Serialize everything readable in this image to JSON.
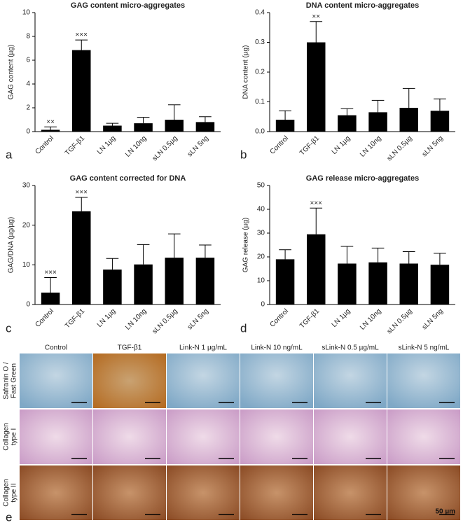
{
  "chart_data": [
    {
      "type": "bar",
      "panel": "a",
      "title": "GAG content micro-aggregates",
      "y_label": "GAG content (µg)",
      "categories": [
        "Control",
        "TGF-β1",
        "LN 1µg",
        "LN 10ng",
        "sLN 0.5µg",
        "sLN 5ng"
      ],
      "values": [
        0.15,
        6.85,
        0.5,
        0.7,
        1.0,
        0.8
      ],
      "errors": [
        0.25,
        0.85,
        0.2,
        0.5,
        1.25,
        0.45
      ],
      "significance": [
        "××",
        "×××",
        null,
        null,
        null,
        null
      ],
      "color": "#000000",
      "ylim": [
        0,
        10
      ],
      "yticks": [
        0,
        2,
        4,
        6,
        8,
        10
      ]
    },
    {
      "type": "bar",
      "panel": "b",
      "title": "DNA content micro-aggregates",
      "y_label": "DNA content (µg)",
      "categories": [
        "Control",
        "TGF-β1",
        "LN 1µg",
        "LN 10ng",
        "sLN 0.5µg",
        "sLN 5ng"
      ],
      "values": [
        0.04,
        0.3,
        0.055,
        0.065,
        0.08,
        0.07
      ],
      "errors": [
        0.03,
        0.07,
        0.022,
        0.04,
        0.065,
        0.04
      ],
      "significance": [
        null,
        "××",
        null,
        null,
        null,
        null
      ],
      "color": "#000000",
      "ylim": [
        0,
        0.4
      ],
      "yticks": [
        {
          "value": 0,
          "label": "0.0"
        },
        0.1,
        0.2,
        0.3,
        0.4
      ]
    },
    {
      "type": "bar",
      "panel": "c",
      "title": "GAG content corrected for DNA",
      "y_label": "GAG/DNA (µg/µg)",
      "categories": [
        "Control",
        "TGF-β1",
        "LN 1µg",
        "LN 10ng",
        "sLN 0.5µg",
        "sLN 5ng"
      ],
      "values": [
        3,
        23.5,
        8.8,
        10.1,
        11.8,
        11.8
      ],
      "errors": [
        3.8,
        3.5,
        2.8,
        5,
        6,
        3.2
      ],
      "significance": [
        "×××",
        "×××",
        null,
        null,
        null,
        null
      ],
      "color": "#000000",
      "ylim": [
        0,
        30
      ],
      "yticks": [
        0,
        10,
        20,
        30
      ]
    },
    {
      "type": "bar",
      "panel": "d",
      "title": "GAG release micro-aggregates",
      "y_label": "GAG release (µg)",
      "categories": [
        "Control",
        "TGF-β1",
        "LN 1µg",
        "LN 10ng",
        "sLN 0.5µg",
        "sLN 5ng"
      ],
      "values": [
        19,
        29.5,
        17.2,
        17.7,
        17.2,
        16.7
      ],
      "errors": [
        4,
        11,
        7.2,
        6,
        5,
        4.8
      ],
      "significance": [
        null,
        "×××",
        null,
        null,
        null,
        null
      ],
      "color": "#000000",
      "ylim": [
        0,
        50
      ],
      "yticks": [
        0,
        10,
        20,
        30,
        40,
        50
      ]
    }
  ],
  "micrograph": {
    "panel": "e",
    "scale_bar": "50 µm",
    "columns": [
      "Control",
      "TGF-β1",
      "Link-N 1 µg/mL",
      "Link-N 10 ng/mL",
      "sLink-N 0.5 µg/mL",
      "sLink-N 5 ng/mL"
    ],
    "rows": [
      [
        "Safranin O /",
        "Fast Green"
      ],
      [
        "Collagen",
        "type I"
      ],
      [
        "Collagen",
        "type II"
      ]
    ]
  }
}
